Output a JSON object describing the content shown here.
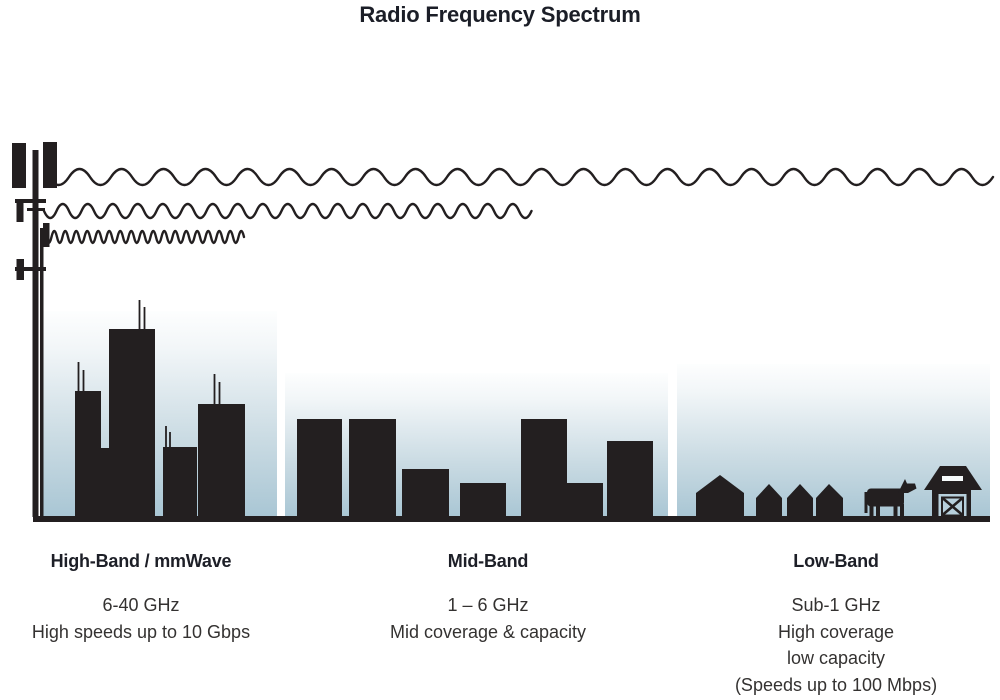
{
  "title": "Radio Frequency Spectrum",
  "colors": {
    "silhouette": "#231f20",
    "sky_gradient_top": "#fdfefe",
    "sky_gradient_bottom": "#a9c6d4",
    "barn_door_fill": "#b7d0dc",
    "heading_text": "#1d1f27",
    "body_text": "#343231"
  },
  "icons": [
    "cell-tower-icon",
    "long-wavelength-wave-icon",
    "medium-wavelength-wave-icon",
    "short-wavelength-wave-icon",
    "city-skyline-icon",
    "town-buildings-icon",
    "village-houses-icon",
    "cow-icon",
    "barn-icon"
  ],
  "bands": [
    {
      "name": "High-Band / mmWave",
      "frequency": "6-40 GHz",
      "details": [
        "High speeds up to 10 Gbps"
      ],
      "scene": "city-skyline",
      "wave": "short-wavelength"
    },
    {
      "name": "Mid-Band",
      "frequency": "1 – 6 GHz",
      "details": [
        "Mid coverage & capacity"
      ],
      "scene": "town-buildings",
      "wave": "medium-wavelength"
    },
    {
      "name": "Low-Band",
      "frequency": "Sub-1 GHz",
      "details": [
        "High coverage",
        "low capacity",
        "(Speeds up to 100 Mbps)"
      ],
      "scene": "rural-farm",
      "wave": "long-wavelength"
    }
  ]
}
